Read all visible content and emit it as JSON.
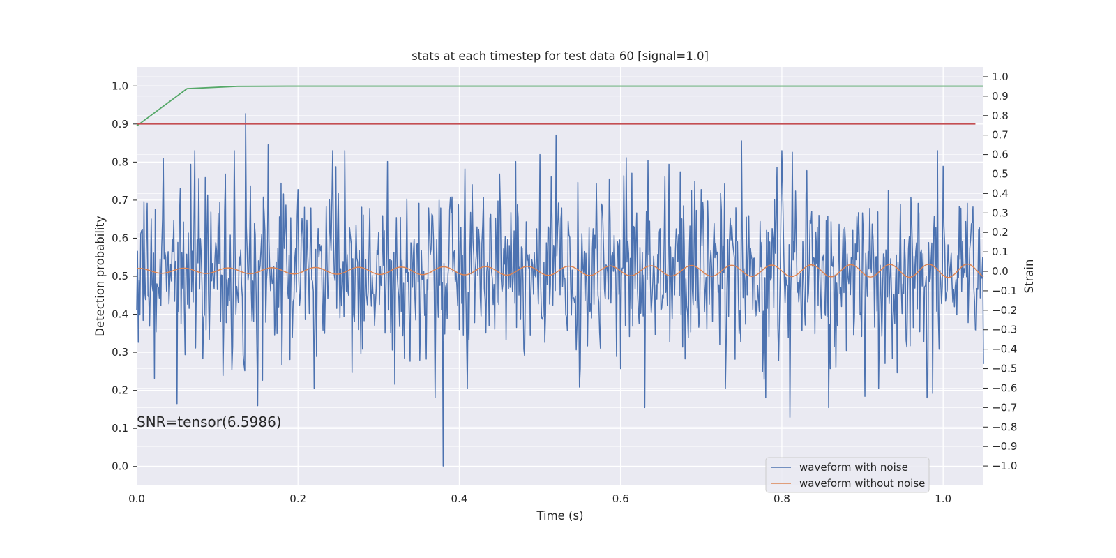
{
  "chart_data": {
    "type": "line",
    "title": "stats at each timestep for test data 60 [signal=1.0]",
    "xlabel": "Time (s)",
    "ylabel": "Detection probability",
    "ylabel_right": "Strain",
    "xlim": [
      0.0,
      1.05
    ],
    "ylim": [
      -0.05,
      1.05
    ],
    "ylim_right": [
      -1.1,
      1.05
    ],
    "x_ticks": [
      "0.0",
      "0.2",
      "0.4",
      "0.6",
      "0.8",
      "1.0"
    ],
    "x_tick_values": [
      0.0,
      0.2,
      0.4,
      0.6,
      0.8,
      1.0
    ],
    "y_ticks": [
      "0.0",
      "0.1",
      "0.2",
      "0.3",
      "0.4",
      "0.5",
      "0.6",
      "0.7",
      "0.8",
      "0.9",
      "1.0"
    ],
    "y_tick_values": [
      0.0,
      0.1,
      0.2,
      0.3,
      0.4,
      0.5,
      0.6,
      0.7,
      0.8,
      0.9,
      1.0
    ],
    "y_ticks_right": [
      "−1.0",
      "−0.9",
      "−0.8",
      "−0.7",
      "−0.6",
      "−0.5",
      "−0.4",
      "−0.3",
      "−0.2",
      "−0.1",
      "0.0",
      "0.1",
      "0.2",
      "0.3",
      "0.4",
      "0.5",
      "0.6",
      "0.7",
      "0.8",
      "0.9",
      "1.0"
    ],
    "y_tick_values_right": [
      -1.0,
      -0.9,
      -0.8,
      -0.7,
      -0.6,
      -0.5,
      -0.4,
      -0.3,
      -0.2,
      -0.1,
      0.0,
      0.1,
      0.2,
      0.3,
      0.4,
      0.5,
      0.6,
      0.7,
      0.8,
      0.9,
      1.0
    ],
    "annotation": "SNR=tensor(6.5986)",
    "grid": true,
    "legend_position": "bottom-right",
    "series": [
      {
        "name": "waveform with noise",
        "axis": "right",
        "color": "#4c72b0",
        "sample_rate": 1000,
        "amplitude": 0.22,
        "x": [
          0.0,
          0.013,
          0.022,
          0.033,
          0.05,
          0.067,
          0.09,
          0.11,
          0.135,
          0.15,
          0.163,
          0.18,
          0.2,
          0.22,
          0.25,
          0.28,
          0.3,
          0.32,
          0.35,
          0.37,
          0.38,
          0.39,
          0.41,
          0.43,
          0.45,
          0.48,
          0.5,
          0.52,
          0.55,
          0.57,
          0.6,
          0.62,
          0.63,
          0.66,
          0.68,
          0.7,
          0.73,
          0.75,
          0.78,
          0.8,
          0.81,
          0.83,
          0.86,
          0.9,
          0.92,
          0.96,
          0.98,
          1.0,
          1.03,
          1.04
        ],
        "y": [
          -0.2,
          0.35,
          -0.55,
          0.58,
          -0.68,
          0.55,
          -0.35,
          0.5,
          0.81,
          -0.69,
          0.65,
          -0.48,
          0.42,
          -0.6,
          0.4,
          -0.4,
          0.2,
          -0.58,
          0.35,
          -0.65,
          -1.0,
          0.3,
          -0.6,
          0.38,
          0.5,
          -0.4,
          0.6,
          0.7,
          -0.5,
          0.45,
          -0.5,
          0.3,
          -0.7,
          0.55,
          -0.45,
          0.42,
          -0.6,
          0.67,
          -0.65,
          0.62,
          -0.75,
          0.4,
          -0.5,
          0.3,
          -0.6,
          0.38,
          -0.65,
          0.54,
          0.35,
          -0.3
        ]
      },
      {
        "name": "waveform without noise",
        "axis": "right",
        "color": "#dd8452",
        "amplitude_start": 0.012,
        "amplitude_end": 0.035,
        "freq_start": 18.0,
        "freq_end": 21.0
      },
      {
        "name": "",
        "axis": "left",
        "color": "#55a868",
        "x": [
          0.0,
          0.0625,
          0.125,
          0.1875,
          0.25,
          0.3125,
          0.375,
          0.4375,
          0.5,
          0.5625,
          0.625,
          0.6875,
          0.75,
          0.8125,
          0.875,
          0.9375,
          1.0,
          1.05
        ],
        "y": [
          0.895,
          0.993,
          0.999,
          0.9995,
          0.9995,
          0.9995,
          0.9995,
          0.9995,
          0.9995,
          0.9995,
          0.9995,
          0.9995,
          0.9995,
          0.9995,
          0.9995,
          0.9995,
          0.9995,
          0.9995
        ]
      },
      {
        "name": "",
        "axis": "left",
        "color": "#c44e52",
        "x": [
          0.0,
          1.04
        ],
        "y": [
          0.9,
          0.9
        ]
      }
    ]
  }
}
